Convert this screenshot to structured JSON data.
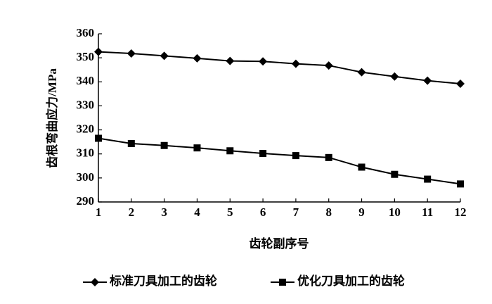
{
  "chart_data": {
    "type": "line",
    "y_label": "齿根弯曲应力/MPa",
    "x_label": "齿轮副序号",
    "x": [
      1,
      2,
      3,
      4,
      5,
      6,
      7,
      8,
      9,
      10,
      11,
      12
    ],
    "xlim": [
      1,
      12
    ],
    "xticks": [
      1,
      2,
      3,
      4,
      5,
      6,
      7,
      8,
      9,
      10,
      11,
      12
    ],
    "ylim": [
      290,
      360
    ],
    "yticks": [
      290,
      300,
      310,
      320,
      330,
      340,
      350,
      360
    ],
    "series": [
      {
        "name": "标准刀具加工的齿轮",
        "color": "#000000",
        "marker": "diamond",
        "values": [
          352.5,
          351.8,
          350.8,
          349.8,
          348.7,
          348.5,
          347.5,
          346.8,
          344.0,
          342.2,
          340.5,
          339.2
        ]
      },
      {
        "name": "优化刀具加工的齿轮",
        "color": "#000000",
        "marker": "square",
        "values": [
          316.5,
          314.3,
          313.5,
          312.5,
          311.3,
          310.2,
          309.3,
          308.5,
          304.5,
          301.5,
          299.5,
          297.5
        ]
      }
    ]
  }
}
